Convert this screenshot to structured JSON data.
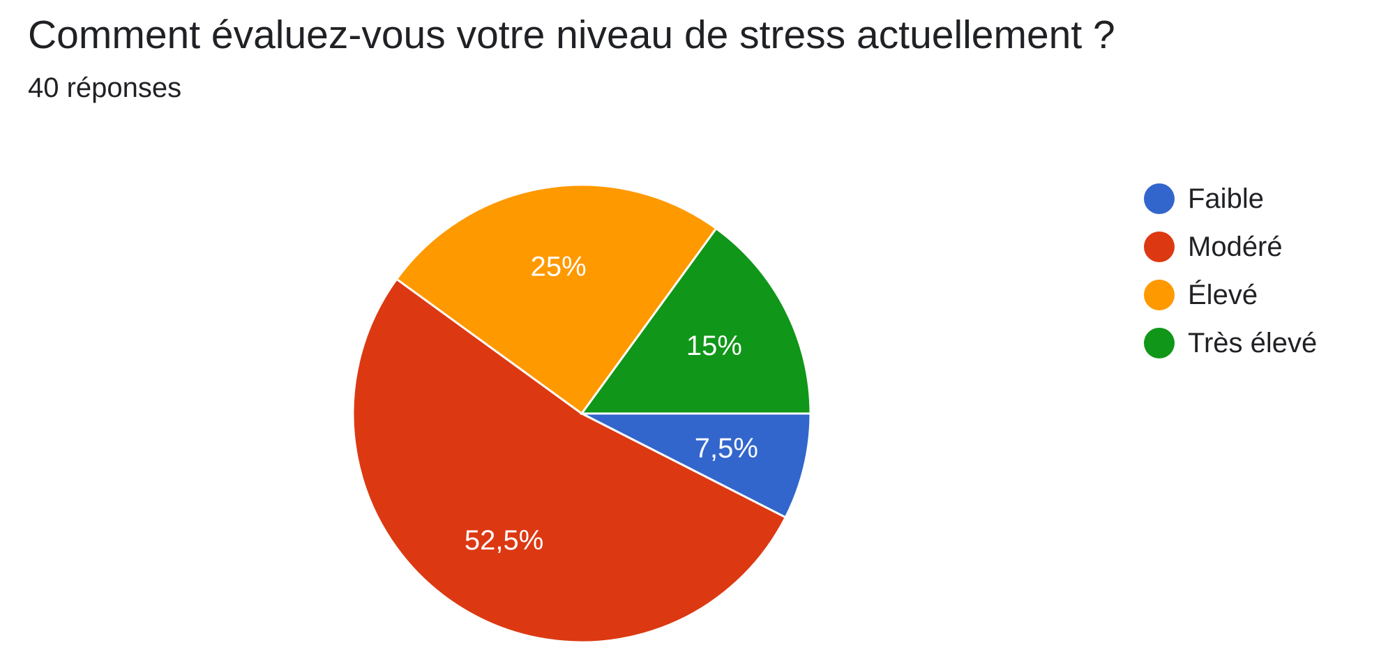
{
  "header": {
    "title": "Comment évaluez-vous votre niveau de stress actuellement ?",
    "responses": "40 réponses"
  },
  "chart_data": {
    "type": "pie",
    "categories": [
      "Faible",
      "Modéré",
      "Élevé",
      "Très élevé"
    ],
    "values": [
      7.5,
      52.5,
      25,
      15
    ],
    "labels": [
      "7,5%",
      "52,5%",
      "25%",
      "15%"
    ],
    "colors": [
      "#3366cc",
      "#dc3912",
      "#ff9900",
      "#109618"
    ],
    "legend_position": "right",
    "start": "3 o'clock",
    "direction": "clockwise"
  }
}
